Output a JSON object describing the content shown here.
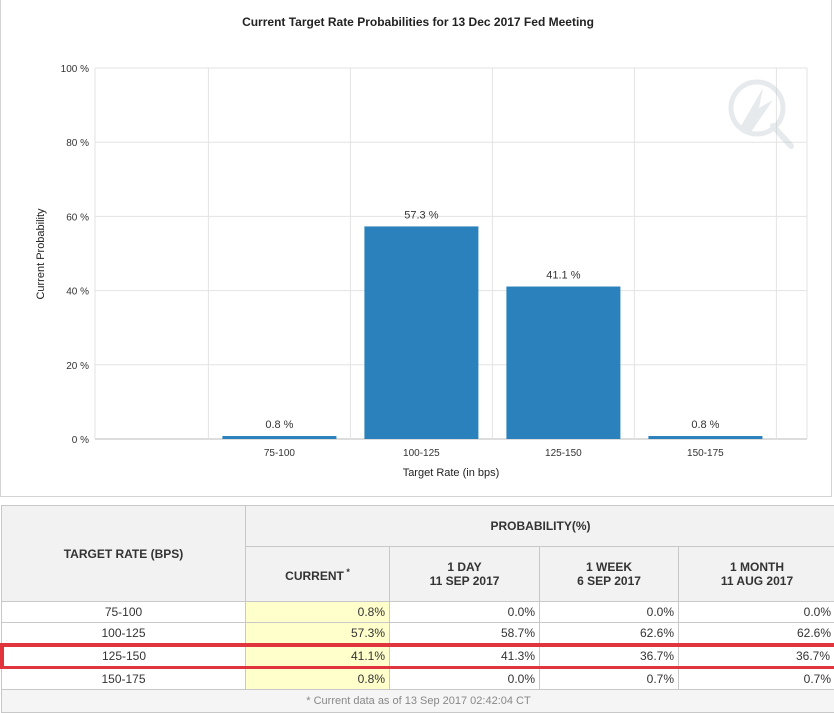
{
  "chart_data": {
    "type": "bar",
    "title": "Current Target Rate Probabilities for 13 Dec 2017 Fed Meeting",
    "xlabel": "Target Rate (in bps)",
    "ylabel": "Current Probability",
    "categories": [
      "75-100",
      "100-125",
      "125-150",
      "150-175"
    ],
    "values": [
      0.8,
      57.3,
      41.1,
      0.8
    ],
    "data_labels": [
      "0.8 %",
      "57.3 %",
      "41.1 %",
      "0.8 %"
    ],
    "ylim": [
      0,
      100
    ],
    "yticks": [
      0,
      20,
      40,
      60,
      80,
      100
    ],
    "ytick_labels": [
      "0 %",
      "20 %",
      "40 %",
      "60 %",
      "80 %",
      "100 %"
    ],
    "grid": true,
    "bar_color": "#2a81bb"
  },
  "table": {
    "rate_header": "TARGET RATE (BPS)",
    "prob_header": "PROBABILITY(%)",
    "columns": [
      {
        "line1": "CURRENT",
        "line2": "",
        "mark": "*"
      },
      {
        "line1": "1 DAY",
        "line2": "11 SEP 2017",
        "mark": ""
      },
      {
        "line1": "1 WEEK",
        "line2": "6 SEP 2017",
        "mark": ""
      },
      {
        "line1": "1 MONTH",
        "line2": "11 AUG 2017",
        "mark": ""
      }
    ],
    "rows": [
      {
        "rate": "75-100",
        "values": [
          "0.8%",
          "0.0%",
          "0.0%",
          "0.0%"
        ]
      },
      {
        "rate": "100-125",
        "values": [
          "57.3%",
          "58.7%",
          "62.6%",
          "62.6%"
        ]
      },
      {
        "rate": "125-150",
        "values": [
          "41.1%",
          "41.3%",
          "36.7%",
          "36.7%"
        ]
      },
      {
        "rate": "150-175",
        "values": [
          "0.8%",
          "0.0%",
          "0.7%",
          "0.7%"
        ]
      }
    ],
    "highlight_row": 2,
    "footnote": "* Current data as of 13 Sep 2017 02:42:04 CT"
  }
}
